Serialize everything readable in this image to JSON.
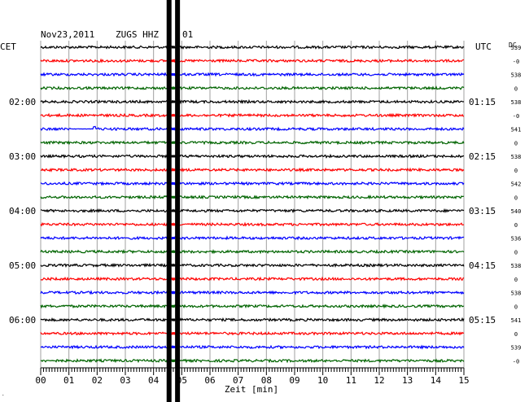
{
  "header": {
    "date": "Nov23,2011",
    "station": "ZUGS HHZ",
    "channel": "01",
    "left_tz": "CET",
    "right_tz": "UTC",
    "dc_label": "DC"
  },
  "chart_data": {
    "type": "line",
    "title": "Nov23,2011  ZUGS HHZ   01",
    "xlabel": "Zeit [min]",
    "xlim": [
      0,
      15
    ],
    "x_ticks": [
      "00",
      "01",
      "02",
      "03",
      "04",
      "05",
      "06",
      "07",
      "08",
      "09",
      "10",
      "11",
      "12",
      "13",
      "14",
      "15"
    ],
    "left_time_labels": [
      {
        "row": 4,
        "text": "02:00"
      },
      {
        "row": 8,
        "text": "03:00"
      },
      {
        "row": 12,
        "text": "04:00"
      },
      {
        "row": 16,
        "text": "05:00"
      },
      {
        "row": 20,
        "text": "06:00"
      }
    ],
    "right_time_labels": [
      {
        "row": 4,
        "text": "01:15"
      },
      {
        "row": 8,
        "text": "02:15"
      },
      {
        "row": 12,
        "text": "03:15"
      },
      {
        "row": 16,
        "text": "04:15"
      },
      {
        "row": 20,
        "text": "05:15"
      }
    ],
    "dc_values": [
      "539",
      "-0",
      "538",
      "0",
      "538",
      "-0",
      "541",
      "0",
      "538",
      "0",
      "542",
      "0",
      "540",
      "0",
      "536",
      "0",
      "538",
      "0",
      "538",
      "0",
      "541",
      "0",
      "539",
      "-0"
    ],
    "trace_colors": [
      "#000000",
      "#ff0000",
      "#0000ff",
      "#006400"
    ],
    "trace_count": 24,
    "event_minute_range": [
      4.55,
      4.85
    ],
    "glitch": {
      "row": 6,
      "minute_range": [
        1.05,
        1.95
      ]
    }
  }
}
